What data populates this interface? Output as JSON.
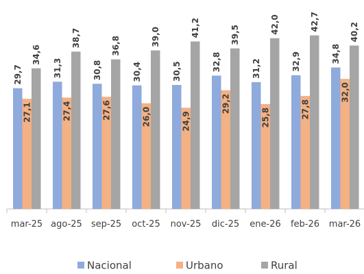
{
  "chart_data": {
    "type": "bar",
    "categories": [
      "mar-25",
      "ago-25",
      "sep-25",
      "oct-25",
      "nov-25",
      "dic-25",
      "ene-26",
      "feb-26",
      "mar-26"
    ],
    "series": [
      {
        "name": "Nacional",
        "color": "#8faadc",
        "values": [
          29.7,
          31.3,
          30.8,
          30.4,
          30.5,
          32.8,
          31.2,
          32.9,
          34.8
        ],
        "value_labels": [
          "29,7",
          "31,3",
          "30,8",
          "30,4",
          "30,5",
          "32,8",
          "31,2",
          "32,9",
          "34,8"
        ]
      },
      {
        "name": "Urbano",
        "color": "#f4b183",
        "values": [
          27.1,
          27.4,
          27.6,
          26.0,
          24.9,
          29.2,
          25.8,
          27.8,
          32.0
        ],
        "value_labels": [
          "27,1",
          "27,4",
          "27,6",
          "26,0",
          "24,9",
          "29,2",
          "25,8",
          "27,8",
          "32,0"
        ]
      },
      {
        "name": "Rural",
        "color": "#a5a5a5",
        "values": [
          34.6,
          38.7,
          36.8,
          39.0,
          41.2,
          39.5,
          42.0,
          42.7,
          40.2
        ],
        "value_labels": [
          "34,6",
          "38,7",
          "36,8",
          "39,0",
          "41,2",
          "39,5",
          "42,0",
          "42,7",
          "40,2"
        ]
      }
    ],
    "ylim": [
      0,
      45
    ],
    "legend": "bottom"
  }
}
